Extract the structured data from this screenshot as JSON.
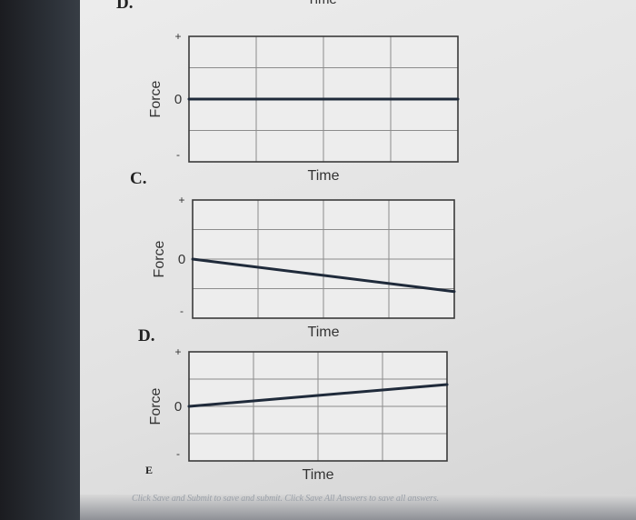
{
  "option_letters": {
    "top_cut": "D.",
    "c": "C.",
    "d": "D.",
    "bottom_cut": "E"
  },
  "top_cut_time_label": "Time",
  "footer_note": "Click Save and Submit to save and submit. Click Save All Answers to save all answers.",
  "chart_data": [
    {
      "type": "line",
      "xlabel": "Time",
      "ylabel": "Force",
      "yticks": [
        "+",
        "0",
        "-"
      ],
      "ylim": [
        -1,
        1
      ],
      "xlim": [
        0,
        4
      ],
      "grid": true,
      "series": [
        {
          "x": [
            0,
            4
          ],
          "values": [
            0,
            0
          ]
        }
      ]
    },
    {
      "type": "line",
      "xlabel": "Time",
      "ylabel": "Force",
      "yticks": [
        "+",
        "0",
        "-"
      ],
      "ylim": [
        -1,
        1
      ],
      "xlim": [
        0,
        4
      ],
      "grid": true,
      "series": [
        {
          "x": [
            0,
            4
          ],
          "values": [
            0,
            -0.55
          ]
        }
      ]
    },
    {
      "type": "line",
      "xlabel": "Time",
      "ylabel": "Force",
      "yticks": [
        "+",
        "0",
        "-"
      ],
      "ylim": [
        -1,
        1
      ],
      "xlim": [
        0,
        4
      ],
      "grid": true,
      "series": [
        {
          "x": [
            0,
            4
          ],
          "values": [
            0,
            0.4
          ]
        }
      ]
    }
  ]
}
